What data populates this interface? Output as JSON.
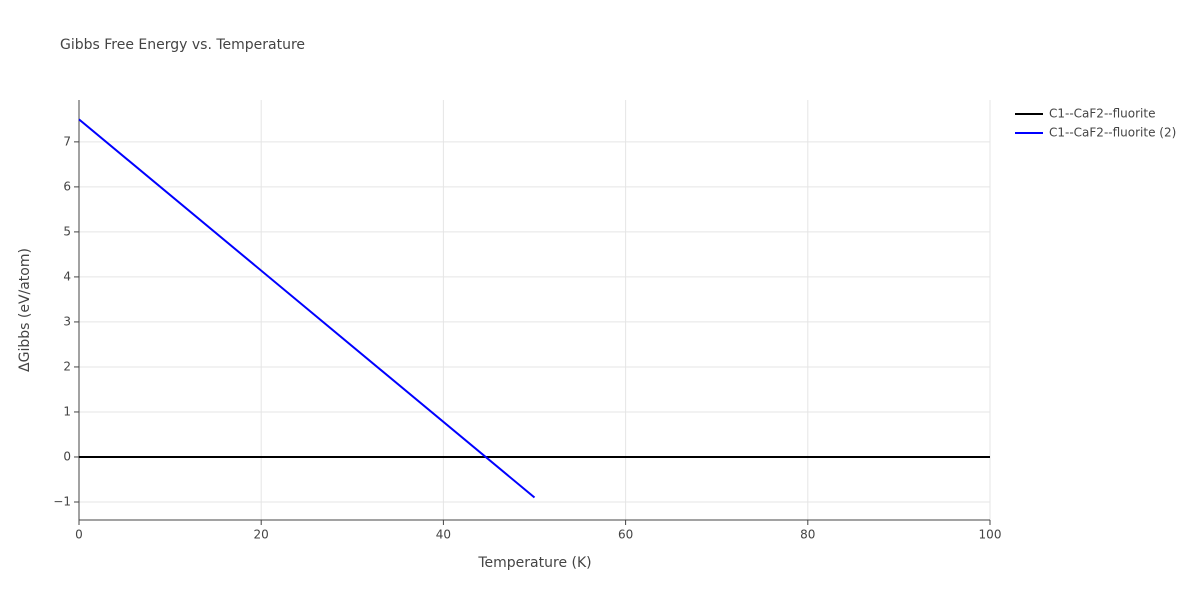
{
  "chart_data": {
    "type": "line",
    "title": "Gibbs Free Energy vs. Temperature",
    "x_label": "Temperature (K)",
    "y_label": "ΔGibbs (eV/atom)",
    "xlim": [
      0,
      100
    ],
    "ylim": [
      -1.4,
      7.93
    ],
    "xticks": [
      0,
      20,
      40,
      60,
      80,
      100
    ],
    "yticks": [
      {
        "value": -1,
        "label": "−1"
      },
      0,
      1,
      2,
      3,
      4,
      5,
      6,
      7
    ],
    "grid": true,
    "legend": "right",
    "series": [
      {
        "name": "C1--CaF2--fluorite",
        "color": "#000000",
        "x": [
          0,
          100
        ],
        "values": [
          0,
          0
        ]
      },
      {
        "name": "C1--CaF2--fluorite (2)",
        "color": "#0000ff",
        "x": [
          0,
          50
        ],
        "values": [
          7.5,
          -0.9
        ]
      }
    ]
  }
}
